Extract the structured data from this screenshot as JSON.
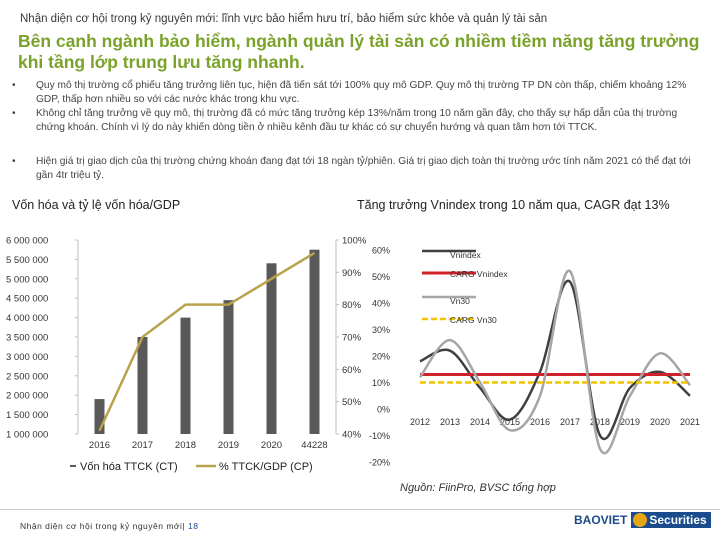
{
  "header": {
    "subtitle": "Nhận diện cơ hội trong kỷ nguyên mới: lĩnh vực bảo hiểm hưu trí, bảo hiểm sức khỏe và quản lý tài sản",
    "headline": "Bên cạnh ngành bảo hiểm, ngành quản lý tài sản có nhiềm tiềm năng tăng trưởng khi tầng lớp trung lưu tăng nhanh."
  },
  "bullets": [
    "Quy mô thị trường cổ phiếu tăng trưởng liên tục, hiện đã tiến sát tới 100% quy mô GDP. Quy mô thị trường TP DN còn thấp, chiếm khoảng 12% GDP, thấp hơn nhiều so với các nước khác trong khu vực.",
    "Không chỉ tăng trưởng về quy mô, thị trường đã có mức tăng trưởng kép 13%/năm trong 10 năm gần đây, cho thấy sự hấp dẫn của thị trường chứng khoán. Chính vì lý do này khiến dòng tiền ở nhiều kênh đầu tư khác có sự chuyển hướng và quan tâm hơn tới TTCK.",
    "Hiện giá trị giao dịch của thị trường chứng khoán đang đạt tới 18 ngàn tỷ/phiên. Giá trị giao dịch toàn thị trường ước tính năm 2021 có thể đạt tới gần 4tr triệu tỷ."
  ],
  "bullet_symbol": "•",
  "chart_data": [
    {
      "type": "bar",
      "title": "Vốn hóa và tỷ lệ vốn hóa/GDP",
      "categories": [
        "2016",
        "2017",
        "2018",
        "2019",
        "2020",
        "44228"
      ],
      "series": [
        {
          "name": "Vốn hóa TTCK (CT)",
          "axis": "left",
          "type": "bar",
          "values": [
            1900000,
            3500000,
            4000000,
            4450000,
            5400000,
            5750000
          ]
        },
        {
          "name": "% TTCK/GDP (CP)",
          "axis": "right",
          "type": "line",
          "values": [
            0.41,
            0.7,
            0.8,
            0.8,
            0.88,
            0.96
          ]
        }
      ],
      "left_axis": {
        "ylim": [
          1000000,
          6000000
        ],
        "ticks": [
          "6 000 000",
          "5 500 000",
          "5 000 000",
          "4 500 000",
          "4 000 000",
          "3 500 000",
          "3 000 000",
          "2 500 000",
          "2 000 000",
          "1 500 000",
          "1 000 000"
        ]
      },
      "right_axis": {
        "ylim": [
          0.4,
          1.0
        ],
        "ticks": [
          "100%",
          "90%",
          "80%",
          "70%",
          "60%",
          "50%",
          "40%"
        ]
      },
      "legend": [
        {
          "label": "Vốn hóa TTCK (CT)",
          "color": "#595959"
        },
        {
          "label": "% TTCK/GDP (CP)",
          "color": "#b8a24a"
        }
      ],
      "legend_position": "bottom",
      "colors": {
        "bar": "#595959",
        "line": "#b8a24a"
      }
    },
    {
      "type": "line",
      "title": "Tăng trưởng Vnindex trong 10 năm qua, CAGR đạt 13%",
      "x": [
        "2012",
        "2013",
        "2014",
        "2015",
        "2016",
        "2017",
        "2018",
        "2019",
        "2020",
        "2021"
      ],
      "series": [
        {
          "name": "Vnindex",
          "color": "#404040",
          "values": [
            0.18,
            0.22,
            0.08,
            -0.04,
            0.14,
            0.48,
            -0.1,
            0.08,
            0.14,
            0.05
          ]
        },
        {
          "name": "CARG Vnindex",
          "color": "#d0202a",
          "values": [
            0.13,
            0.13,
            0.13,
            0.13,
            0.13,
            0.13,
            0.13,
            0.13,
            0.13,
            0.13
          ]
        },
        {
          "name": "Vn30",
          "color": "#a6a6a6",
          "values": [
            0.12,
            0.26,
            0.1,
            -0.08,
            0.05,
            0.52,
            -0.15,
            0.05,
            0.21,
            0.09
          ]
        },
        {
          "name": "CARG Vn30",
          "color": "#f2c200",
          "values": [
            0.1,
            0.1,
            0.1,
            0.1,
            0.1,
            0.1,
            0.1,
            0.1,
            0.1,
            0.1
          ]
        }
      ],
      "ylim": [
        -0.2,
        0.6
      ],
      "yticks": [
        "60%",
        "50%",
        "40%",
        "30%",
        "20%",
        "10%",
        "0%",
        "-10%",
        "-20%"
      ],
      "legend_position": "top-right"
    }
  ],
  "source_note": "Nguồn: FiinPro, BVSC tổng hợp",
  "footer": {
    "text": "Nhận diện cơ hội trong kỷ nguyên mới",
    "separator": "|",
    "page": "18"
  },
  "logo": {
    "brand": "BAOVIET",
    "suffix": "Securities"
  }
}
